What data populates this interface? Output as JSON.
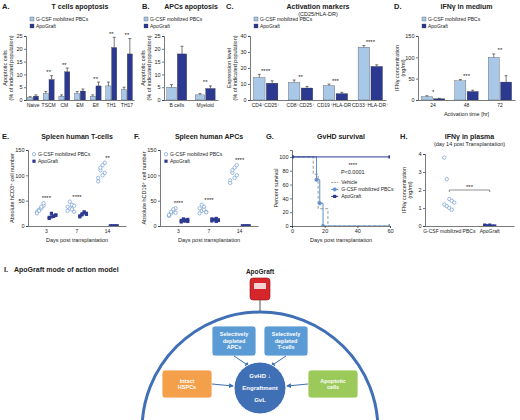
{
  "chart_data": [
    {
      "type": "bar",
      "panel": "A.",
      "title": "T cells apoptosis",
      "y_label": "Apoptotic cells (% of indicated population)",
      "categories": [
        "Naive",
        "TSCM",
        "CM",
        "EM",
        "Eff",
        "TH1",
        "TH17"
      ],
      "series": [
        {
          "name": "G-CSF mobilized PBCs",
          "color": "#a9c8e8",
          "values": [
            1.0,
            2.5,
            1.5,
            2.5,
            1.5,
            5.5,
            4.0
          ],
          "errors": [
            0.3,
            0.8,
            0.5,
            0.8,
            0.5,
            1.5,
            1.0
          ]
        },
        {
          "name": "ApoGraft",
          "color": "#2b3990",
          "values": [
            1.5,
            8.0,
            11.0,
            3.5,
            5.5,
            20.5,
            18.0
          ],
          "errors": [
            0.5,
            1.5,
            1.5,
            0.8,
            1.5,
            4.0,
            6.0
          ]
        }
      ],
      "significance": [
        null,
        "**",
        "**",
        null,
        "**",
        "**",
        "**"
      ],
      "ylim": [
        0,
        25
      ],
      "yticks": [
        0,
        5,
        10,
        15,
        20,
        25
      ],
      "legend": "top-left"
    },
    {
      "type": "bar",
      "panel": "B.",
      "title": "APCs apoptosis",
      "y_label": "Apoptotic cells (% of indicated population)",
      "categories": [
        "B cells",
        "Myeloid"
      ],
      "series": [
        {
          "name": "G-CSF mobilized PBCs",
          "color": "#a9c8e8",
          "values": [
            5.0,
            2.0
          ],
          "errors": [
            1.0,
            0.5
          ]
        },
        {
          "name": "ApoGraft",
          "color": "#2b3990",
          "values": [
            18.0,
            4.5
          ],
          "errors": [
            3.0,
            1.0
          ]
        }
      ],
      "significance": [
        null,
        "**"
      ],
      "ylim": [
        0,
        25
      ],
      "yticks": [
        0,
        5,
        10,
        15,
        20,
        25
      ],
      "legend": "top-left"
    },
    {
      "type": "bar",
      "panel": "C.",
      "title": "Activation markers",
      "subtitle": "(CD25/HLA-DR)",
      "y_label": "Expression level (% of indicated population)",
      "categories": [
        "CD4⁺CD25⁺",
        "CD8⁺CD25⁺",
        "CD19⁺HLA-DR⁺",
        "CD33⁺HLA-DR⁺"
      ],
      "series": [
        {
          "name": "G-CSF mobilized PBCs",
          "color": "#a9c8e8",
          "values": [
            14.0,
            11.0,
            9.0,
            33.0
          ],
          "errors": [
            2.0,
            1.5,
            1.0,
            1.0
          ]
        },
        {
          "name": "ApoGraft",
          "color": "#2b3990",
          "values": [
            10.5,
            7.5,
            4.0,
            21.0
          ],
          "errors": [
            1.5,
            1.0,
            0.8,
            1.0
          ]
        }
      ],
      "significance": [
        "****",
        "**",
        "***",
        "****"
      ],
      "ylim": [
        0,
        40
      ],
      "yticks": [
        0,
        10,
        20,
        30,
        40
      ],
      "legend": "top-left"
    },
    {
      "type": "bar",
      "panel": "D.",
      "title": "IFNγ in medium",
      "y_label": "IFNγ concentration (ng/ml)",
      "x_label": "Activation time [hr]",
      "categories": [
        24,
        48,
        72
      ],
      "series": [
        {
          "name": "G-CSF mobilized PBCs",
          "color": "#a9c8e8",
          "values": [
            8,
            45,
            100
          ],
          "errors": [
            2,
            3,
            8
          ]
        },
        {
          "name": "ApoGraft",
          "color": "#2b3990",
          "values": [
            3,
            20,
            42
          ],
          "errors": [
            1,
            3,
            15
          ]
        }
      ],
      "significance": [
        "*",
        "***",
        "**"
      ],
      "ylim": [
        0,
        150
      ],
      "yticks": [
        0,
        50,
        100,
        150
      ],
      "legend": "top-left"
    },
    {
      "type": "scatter",
      "panel": "E.",
      "title": "Spleen human T-cells",
      "y_label": "Absolute hCD3⁺ cell number",
      "x_label": "Days post transplantation",
      "categories": [
        3,
        7,
        14
      ],
      "series": [
        {
          "name": "G-CSF mobilized PBCs",
          "color": "#5f8fcc",
          "marker": "open-circle",
          "values": [
            [
              28,
              32,
              35,
              40,
              25,
              30,
              38,
              45
            ],
            [
              30,
              35,
              42,
              28,
              38,
              48,
              33,
              40
            ],
            [
              95,
              110,
              120,
              105,
              88,
              115,
              100,
              125
            ]
          ]
        },
        {
          "name": "ApoGraft",
          "color": "#2b3990",
          "marker": "square",
          "values": [
            [
              15,
              18,
              20,
              22,
              17,
              25,
              19,
              21
            ],
            [
              20,
              22,
              28,
              25,
              18,
              24,
              26,
              23
            ],
            [
              0,
              0,
              0,
              0,
              0,
              0,
              0,
              0
            ]
          ]
        }
      ],
      "significance": [
        "****",
        "****",
        "**"
      ],
      "ylim": [
        0,
        150
      ],
      "yticks": [
        0,
        50,
        100,
        150
      ],
      "legend": "top-left"
    },
    {
      "type": "scatter",
      "panel": "F.",
      "title": "Spleen human APCs",
      "y_label": "Absolute hCD19⁺ cell number",
      "x_label": "Days post transplantation",
      "categories": [
        3,
        7,
        14
      ],
      "series": [
        {
          "name": "G-CSF mobilized PBCs",
          "color": "#5f8fcc",
          "marker": "open-circle",
          "values": [
            [
              20,
              25,
              30,
              35,
              22,
              28,
              33,
              26
            ],
            [
              25,
              30,
              38,
              28,
              35,
              42,
              32,
              27
            ],
            [
              90,
              105,
              115,
              100,
              85,
              110,
              95,
              120
            ]
          ]
        },
        {
          "name": "ApoGraft",
          "color": "#2b3990",
          "marker": "square",
          "values": [
            [
              8,
              10,
              12,
              9,
              11,
              14,
              10,
              13
            ],
            [
              10,
              12,
              15,
              11,
              14,
              13,
              9,
              12
            ],
            [
              0,
              0,
              0,
              0,
              0,
              0,
              0,
              0
            ]
          ]
        }
      ],
      "significance": [
        "****",
        "****",
        "****"
      ],
      "ylim": [
        0,
        150
      ],
      "yticks": [
        0,
        50,
        100,
        150
      ],
      "legend": "top-left"
    },
    {
      "type": "line",
      "panel": "G.",
      "title": "GvHD survival",
      "y_label": "Percent survival",
      "x_label": "Days post transplantation",
      "xlim": [
        0,
        60
      ],
      "xticks": [
        0,
        20,
        40,
        60
      ],
      "ylim": [
        0,
        110
      ],
      "yticks": [
        0,
        20,
        40,
        60,
        80,
        100
      ],
      "series": [
        {
          "name": "Vehicle",
          "color": "#9a9a9a",
          "line_style": "dashed",
          "x": [
            0,
            13,
            16,
            22,
            60
          ],
          "values": [
            100,
            75,
            25,
            0,
            0
          ]
        },
        {
          "name": "G-CSF mobilized PBCs",
          "color": "#5f8fcc",
          "marker": "circle",
          "line_style": "solid",
          "x": [
            0,
            15,
            17,
            19,
            60
          ],
          "values": [
            100,
            67,
            33,
            0,
            0
          ]
        },
        {
          "name": "ApoGraft",
          "color": "#2b3990",
          "marker": "square",
          "line_style": "solid",
          "x": [
            0,
            60
          ],
          "values": [
            100,
            100
          ]
        }
      ],
      "annotations": [
        "****",
        "P<0.0001"
      ],
      "legend": "right"
    },
    {
      "type": "scatter",
      "panel": "H.",
      "title": "IFNγ in plasma",
      "subtitle": "(day 14 post Transplantation)",
      "y_label": "IFNγ concentration (ng/ml)",
      "series": [
        {
          "name": "G-CSF mobilized PBCs",
          "color": "#5f8fcc",
          "marker": "open-circle",
          "values": [
            3.8,
            2.6,
            1.5,
            1.4,
            1.3,
            1.2,
            1.1,
            1.0,
            0.9
          ]
        },
        {
          "name": "ApoGraft",
          "color": "#2b3990",
          "marker": "square",
          "values": [
            0,
            0,
            0.05,
            0,
            0,
            0.05,
            0
          ]
        }
      ],
      "significance": "***",
      "ylim": [
        0,
        4
      ],
      "yticks": [
        0,
        1,
        2,
        3,
        4
      ]
    }
  ],
  "diagram": {
    "panel": "I.",
    "title": "ApoGraft mode of action model",
    "source": "ApoGraft",
    "boxes": [
      "Selectively depleted APCs",
      "Selectively depleted T-cells",
      "Intact HSPCs",
      "Apoptotic cells"
    ],
    "outcomes": [
      "GvHD ↓",
      "Engraftment",
      "GvL"
    ]
  }
}
